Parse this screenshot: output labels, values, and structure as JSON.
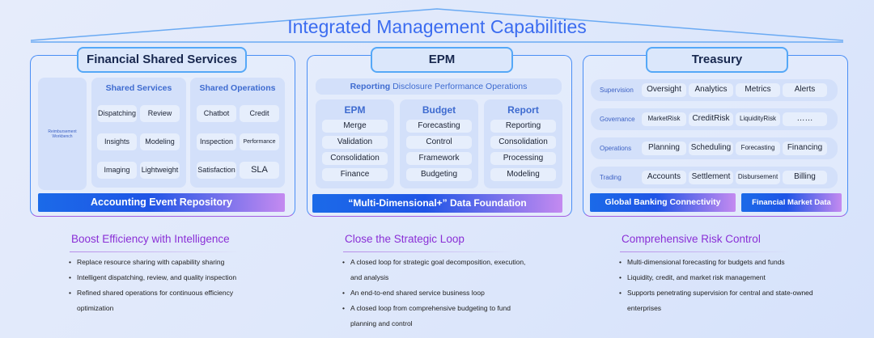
{
  "title": "Integrated Management Capabilities",
  "colors": {
    "accent": "#3b6cf0",
    "heading_purple": "#8a2fd6",
    "border_blue": "#4a8ef5"
  },
  "fss": {
    "title": "Financial Shared Services",
    "workbench": "Reimbursement Workbench",
    "shared_services": {
      "title": "Shared Services",
      "items": [
        "Dispatching",
        "Review",
        "Insights",
        "Modeling",
        "Imaging",
        "Lightweight"
      ]
    },
    "shared_operations": {
      "title": "Shared Operations",
      "items": [
        "Chatbot",
        "Credit",
        "Inspection",
        "Performance",
        "Satisfaction",
        "SLA"
      ]
    },
    "bar": "Accounting Event Repository"
  },
  "epm": {
    "title": "EPM",
    "top_bold": "Reporting",
    "top_rest": " Disclosure Performance Operations",
    "columns": [
      {
        "title": "EPM",
        "items": [
          "Merge",
          "Validation",
          "Consolidation",
          "Finance"
        ]
      },
      {
        "title": "Budget",
        "items": [
          "Forecasting",
          "Control",
          "Framework",
          "Budgeting"
        ]
      },
      {
        "title": "Report",
        "items": [
          "Reporting",
          "Consolidation",
          "Processing",
          "Modeling"
        ]
      }
    ],
    "bar": "“Multi-Dimensional+” Data Foundation"
  },
  "treasury": {
    "title": "Treasury",
    "rows": [
      {
        "label": "Supervision",
        "items": [
          "Oversight",
          "Analytics",
          "Metrics",
          "Alerts"
        ]
      },
      {
        "label": "Governance",
        "items": [
          "MarketRisk",
          "CreditRisk",
          "LiquidityRisk",
          "……"
        ]
      },
      {
        "label": "Operations",
        "items": [
          "Planning",
          "Scheduling",
          "Forecasting",
          "Financing"
        ]
      },
      {
        "label": "Trading",
        "items": [
          "Accounts",
          "Settlement",
          "Disbursement",
          "Billing"
        ]
      }
    ],
    "bars": [
      "Global Banking Connectivity",
      "Financial Market Data"
    ]
  },
  "sections": [
    {
      "heading": "Boost Efficiency with Intelligence",
      "bullets": [
        "Replace resource sharing with capability sharing",
        "Intelligent dispatching, review, and quality inspection",
        "Refined shared operations for continuous efficiency optimization"
      ]
    },
    {
      "heading": "Close the Strategic Loop",
      "bullets": [
        "A closed loop for strategic goal decomposition, execution, and analysis",
        "An end-to-end shared service business loop",
        "A closed loop from comprehensive budgeting to fund planning and control"
      ]
    },
    {
      "heading": "Comprehensive Risk Control",
      "bullets": [
        "Multi-dimensional forecasting for budgets and funds",
        "Liquidity, credit, and market risk management",
        "Supports penetrating supervision for central and state-owned enterprises"
      ]
    }
  ]
}
